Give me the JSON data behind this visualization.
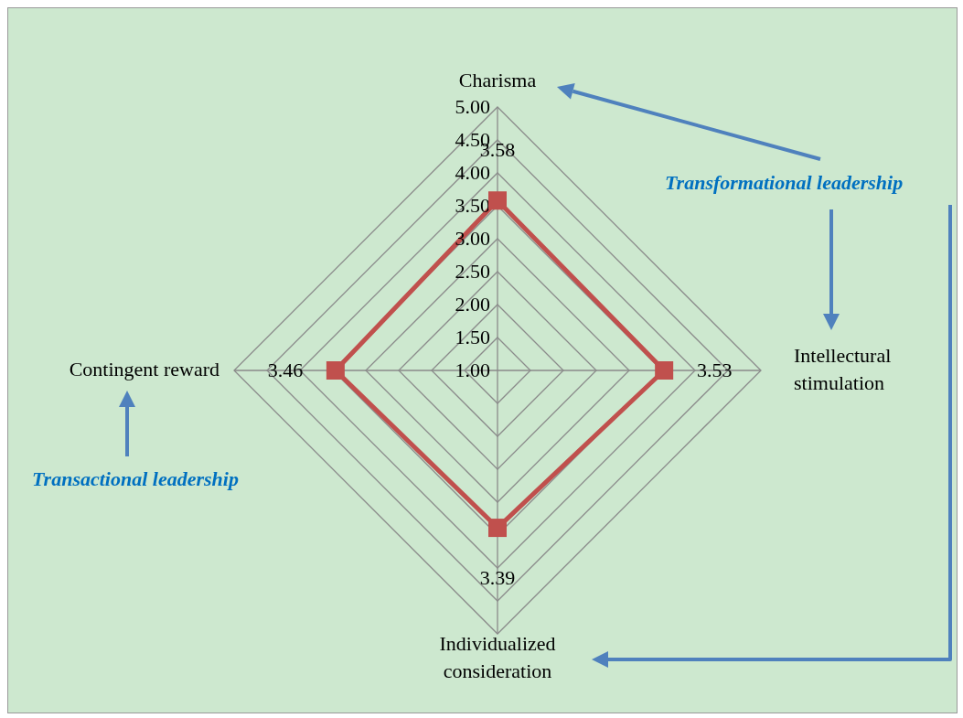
{
  "chart_data": {
    "type": "radar",
    "categories": [
      "Charisma",
      "Intellectural stimulation",
      "Individualized consideration",
      "Contingent reward"
    ],
    "series": [
      {
        "color": "#c0504d",
        "values": [
          3.58,
          3.53,
          3.39,
          3.46
        ]
      }
    ],
    "ylim": [
      1,
      5
    ],
    "yticks": [
      {
        "value": 1,
        "label": "1.00"
      },
      {
        "value": 1.5,
        "label": "1.50"
      },
      {
        "value": 2,
        "label": "2.00"
      },
      {
        "value": 2.5,
        "label": "2.50"
      },
      {
        "value": 3,
        "label": "3.00"
      },
      {
        "value": 3.5,
        "label": "3.50"
      },
      {
        "value": 4,
        "label": "4.00"
      },
      {
        "value": 4.5,
        "label": "4.50"
      },
      {
        "value": 5,
        "label": "5.00"
      }
    ],
    "grid": true,
    "marker": "square",
    "data_labels": true,
    "annotations": [
      "Transformational leadership",
      "Transactional leadership"
    ]
  }
}
